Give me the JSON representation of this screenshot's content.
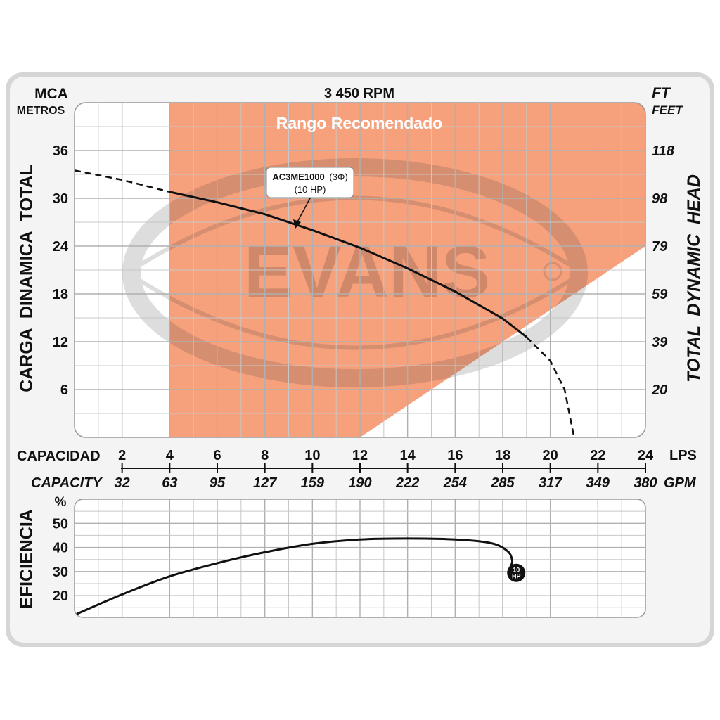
{
  "chart_data": [
    {
      "type": "line",
      "title": "3 450 RPM",
      "left_axis": {
        "unit": "MCA",
        "unit_sub": "METROS",
        "label": "CARGA  DINAMICA  TOTAL",
        "ticks": [
          6,
          12,
          18,
          24,
          30,
          36
        ],
        "range": [
          0,
          42
        ]
      },
      "right_axis": {
        "unit": "FT",
        "unit_sub": "FEET",
        "label": "TOTAL  DYNAMIC  HEAD",
        "ticks": [
          "20",
          "39",
          "59",
          "79",
          "98",
          "118"
        ]
      },
      "x_axis": {
        "label": "CAPACIDAD",
        "unit": "LPS",
        "range": [
          0,
          24
        ],
        "ticks": [
          2,
          4,
          6,
          8,
          10,
          12,
          14,
          16,
          18,
          20,
          22,
          24
        ],
        "secondary_label": "CAPACITY",
        "secondary_unit": "GPM",
        "secondary_ticks": [
          "32",
          "63",
          "95",
          "127",
          "159",
          "190",
          "222",
          "254",
          "285",
          "317",
          "349",
          "380"
        ]
      },
      "recommended_range_label": "Rango Recomendado",
      "recommended_range_polygon": [
        [
          4,
          42
        ],
        [
          24,
          42
        ],
        [
          24,
          24
        ],
        [
          12,
          0
        ],
        [
          4,
          0
        ]
      ],
      "watermark": "EVANS",
      "series": [
        {
          "name": "AC3ME1000",
          "phase": "(3Φ)",
          "power": "(10 HP)",
          "solid": [
            [
              4,
              30.8
            ],
            [
              6,
              29.5
            ],
            [
              8,
              28.0
            ],
            [
              10,
              26.0
            ],
            [
              12,
              23.8
            ],
            [
              14,
              21.2
            ],
            [
              16,
              18.3
            ],
            [
              18,
              14.9
            ],
            [
              19,
              12.6
            ]
          ],
          "dashed_start": [
            [
              0,
              33.5
            ],
            [
              2,
              32.3
            ],
            [
              4,
              30.8
            ]
          ],
          "dashed_end": [
            [
              19,
              12.6
            ],
            [
              20,
              9.6
            ],
            [
              20.6,
              6.0
            ],
            [
              21,
              0
            ]
          ]
        }
      ]
    },
    {
      "type": "line",
      "ylabel": "EFICIENCIA",
      "yunit": "%",
      "yticks": [
        20,
        30,
        40,
        50
      ],
      "ylim": [
        11,
        60
      ],
      "x_range": [
        0,
        24
      ],
      "series": [
        {
          "name": "10 HP",
          "badge_top": "10",
          "badge_bottom": "HP",
          "points": [
            [
              0,
              12
            ],
            [
              2,
              20.5
            ],
            [
              4,
              28
            ],
            [
              6,
              33.5
            ],
            [
              8,
              38
            ],
            [
              10,
              41.5
            ],
            [
              12,
              43.3
            ],
            [
              14,
              43.7
            ],
            [
              16,
              43.3
            ],
            [
              17.5,
              41.8
            ],
            [
              18.2,
              38.5
            ],
            [
              18.4,
              34.5
            ],
            [
              18.3,
              31.5
            ]
          ]
        }
      ]
    }
  ]
}
